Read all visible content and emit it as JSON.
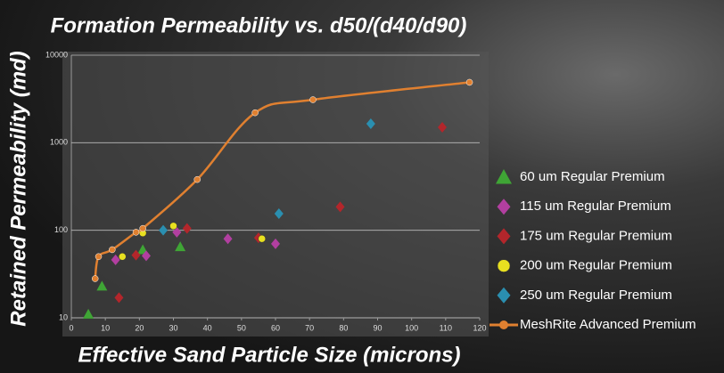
{
  "chart_data": {
    "type": "scatter",
    "title": "Formation Permeability vs. d50/(d40/d90)",
    "x_label": "Effective Sand Particle Size (microns)",
    "y_label": "Retained Permeability (md)",
    "xlim": [
      0,
      120
    ],
    "xticks": [
      0,
      10,
      20,
      30,
      40,
      50,
      60,
      70,
      80,
      90,
      100,
      110,
      120
    ],
    "ylim": [
      10,
      10000
    ],
    "yticks": [
      10,
      100,
      1000,
      10000
    ],
    "y_scale": "log",
    "grid": true,
    "legend": "right",
    "series": [
      {
        "name": "60 um Regular Premium",
        "color": "#3fa535",
        "marker": "triangle",
        "x": [
          5,
          9,
          21,
          32
        ],
        "values": [
          11,
          23,
          60,
          65
        ]
      },
      {
        "name": "115 um Regular Premium",
        "color": "#b23fa0",
        "marker": "diamond",
        "x": [
          13,
          22,
          31,
          46,
          60
        ],
        "values": [
          46,
          51,
          95,
          80,
          70
        ]
      },
      {
        "name": "175 um Regular Premium",
        "color": "#b3262b",
        "marker": "diamond",
        "x": [
          14,
          19,
          34,
          55,
          79,
          109
        ],
        "values": [
          17,
          52,
          105,
          82,
          185,
          1500
        ]
      },
      {
        "name": "200 um Regular Premium",
        "color": "#e8e020",
        "marker": "circle",
        "x": [
          15,
          21,
          30,
          56
        ],
        "values": [
          50,
          93,
          112,
          80
        ]
      },
      {
        "name": "250 um Regular Premium",
        "color": "#2a8fb0",
        "marker": "diamond",
        "x": [
          27,
          61,
          88
        ],
        "values": [
          100,
          155,
          1650
        ]
      },
      {
        "name": "MeshRite Advanced Premium",
        "color": "#e08030",
        "marker": "line",
        "x": [
          7,
          8,
          12,
          19,
          21,
          37,
          54,
          71,
          117
        ],
        "values": [
          28,
          50,
          60,
          95,
          105,
          380,
          2200,
          3100,
          4900
        ]
      }
    ]
  }
}
